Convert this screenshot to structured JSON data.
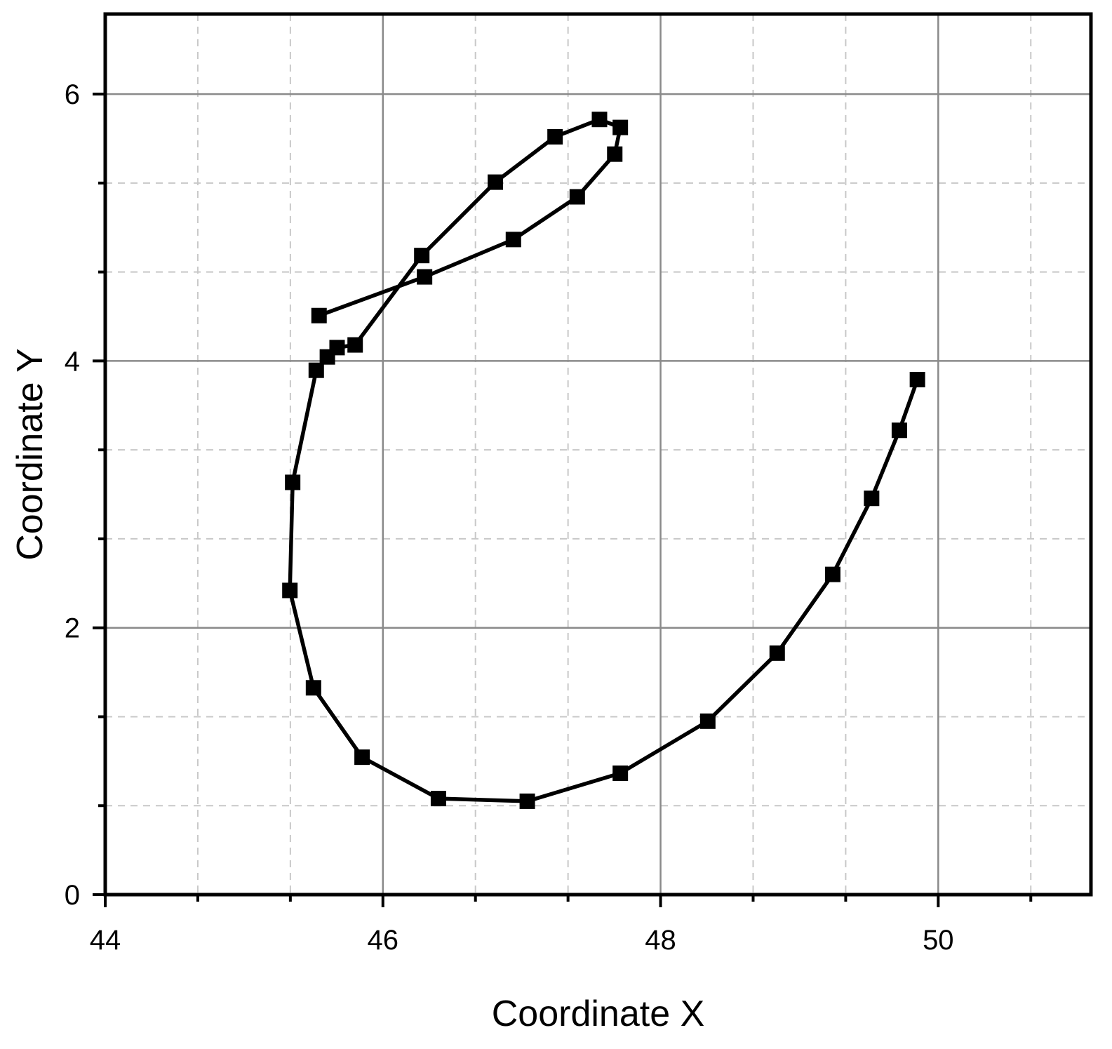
{
  "chart_data": {
    "type": "line",
    "title": "",
    "xlabel": "Coordinate X",
    "ylabel": "Coordinate Y",
    "xlim": [
      44,
      51.1
    ],
    "ylim": [
      0,
      6.6
    ],
    "x_ticks": [
      44,
      46,
      48,
      50
    ],
    "y_ticks": [
      0,
      2,
      4,
      6
    ],
    "x_tick_labels": [
      "44",
      "46",
      "48",
      "50"
    ],
    "y_tick_labels": [
      "0",
      "2",
      "4",
      "6"
    ],
    "x_minor_step": 0.6667,
    "y_minor_step": 0.6667,
    "grid": true,
    "marker": "square",
    "colors": {
      "line": "#000000",
      "marker": "#000000",
      "major_grid": "#8a8a8a",
      "minor_grid": "#c8c8c8"
    },
    "series": [
      {
        "points": [
          [
            49.85,
            3.86
          ],
          [
            49.72,
            3.48
          ],
          [
            49.52,
            2.97
          ],
          [
            49.24,
            2.4
          ],
          [
            48.84,
            1.81
          ],
          [
            48.34,
            1.3
          ],
          [
            47.71,
            0.91
          ],
          [
            47.04,
            0.7
          ],
          [
            46.4,
            0.72
          ],
          [
            45.85,
            1.03
          ],
          [
            45.5,
            1.55
          ],
          [
            45.33,
            2.28
          ],
          [
            45.35,
            3.09
          ],
          [
            45.52,
            3.93
          ],
          [
            45.6,
            4.03
          ],
          [
            45.67,
            4.1
          ],
          [
            45.8,
            4.12
          ],
          [
            46.28,
            4.79
          ],
          [
            46.81,
            5.34
          ],
          [
            47.24,
            5.68
          ],
          [
            47.56,
            5.81
          ],
          [
            47.71,
            5.75
          ],
          [
            47.67,
            5.55
          ],
          [
            47.4,
            5.23
          ],
          [
            46.94,
            4.91
          ],
          [
            46.3,
            4.63
          ],
          [
            45.54,
            4.34
          ]
        ]
      }
    ]
  }
}
